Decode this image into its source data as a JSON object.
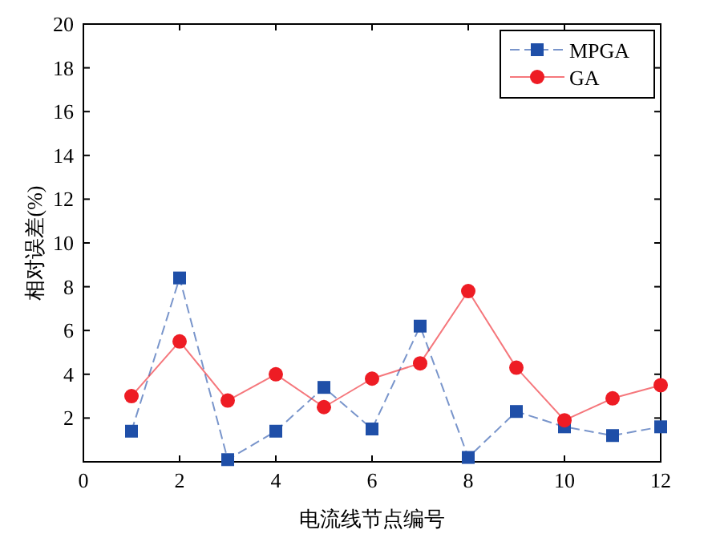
{
  "chart_data": {
    "type": "line",
    "xlabel": "电流线节点编号",
    "ylabel": "相对误差(%)",
    "x": [
      1,
      2,
      3,
      4,
      5,
      6,
      7,
      8,
      9,
      10,
      11,
      12
    ],
    "series": [
      {
        "name": "MPGA",
        "color": "#1f4fa8",
        "marker": "square",
        "line_style": "dashed",
        "values": [
          1.4,
          8.4,
          0.1,
          1.4,
          3.4,
          1.5,
          6.2,
          0.2,
          2.3,
          1.6,
          1.2,
          1.6
        ]
      },
      {
        "name": "GA",
        "color": "#ee1c24",
        "marker": "circle",
        "line_style": "solid",
        "values": [
          3.0,
          5.5,
          2.8,
          4.0,
          2.5,
          3.8,
          4.5,
          7.8,
          4.3,
          1.9,
          2.9,
          3.5
        ]
      }
    ],
    "xlim": [
      0,
      12
    ],
    "xticks": [
      0,
      2,
      4,
      6,
      8,
      10,
      12
    ],
    "ylim": [
      0,
      20
    ],
    "yticks": [
      2,
      4,
      6,
      8,
      10,
      12,
      14,
      16,
      18,
      20
    ],
    "grid": false,
    "legend": "top right"
  }
}
